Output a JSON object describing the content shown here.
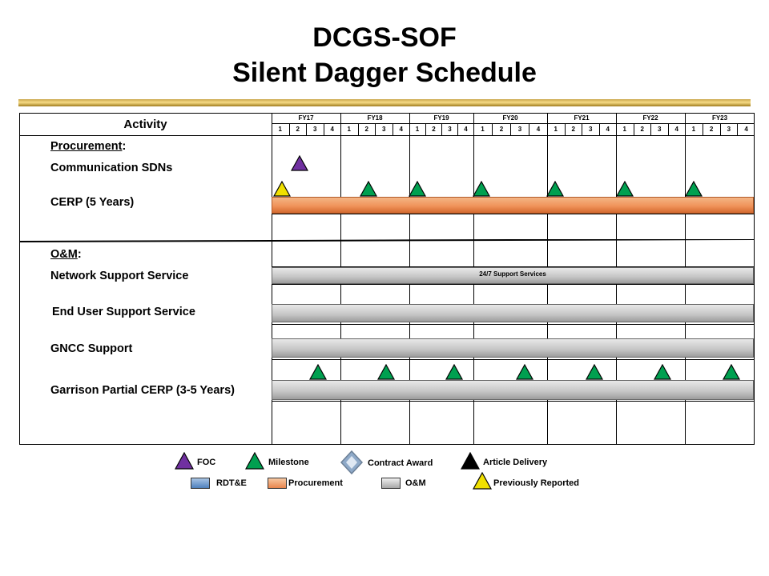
{
  "title": {
    "line1": "DCGS-SOF",
    "line2": "Silent Dagger Schedule"
  },
  "header": {
    "activity": "Activity",
    "fiscal_years": [
      "FY17",
      "FY18",
      "FY19",
      "FY20",
      "FY21",
      "FY22",
      "FY23"
    ],
    "quarters": [
      "1",
      "2",
      "3",
      "4"
    ]
  },
  "activities": {
    "procurement_heading": "Procurement",
    "comm_sdns": "Communication SDNs",
    "cerp": "CERP (5 Years)",
    "om_heading": "O&M",
    "network_support": "Network Support Service",
    "end_user_support": "End User Support Service",
    "gncc_support": "GNCC Support",
    "garrison_cerp": "Garrison Partial CERP (3-5 Years)"
  },
  "bars": {
    "network_support_text": "24/7 Support Services"
  },
  "legend": {
    "foc": "FOC",
    "milestone": "Milestone",
    "contract_award": "Contract Award",
    "article_delivery": "Article Delivery",
    "rdte": "RDT&E",
    "procurement": "Procurement",
    "om": "O&M",
    "previously_reported": "Previously Reported"
  },
  "colors": {
    "foc": "#7030a0",
    "milestone": "#00a050",
    "previously_reported": "#f0e000",
    "article_delivery": "#000000",
    "procurement_bar": "#f0935a",
    "om_bar": "#c4c4c4",
    "rdte_bar": "#4f81bd"
  }
}
